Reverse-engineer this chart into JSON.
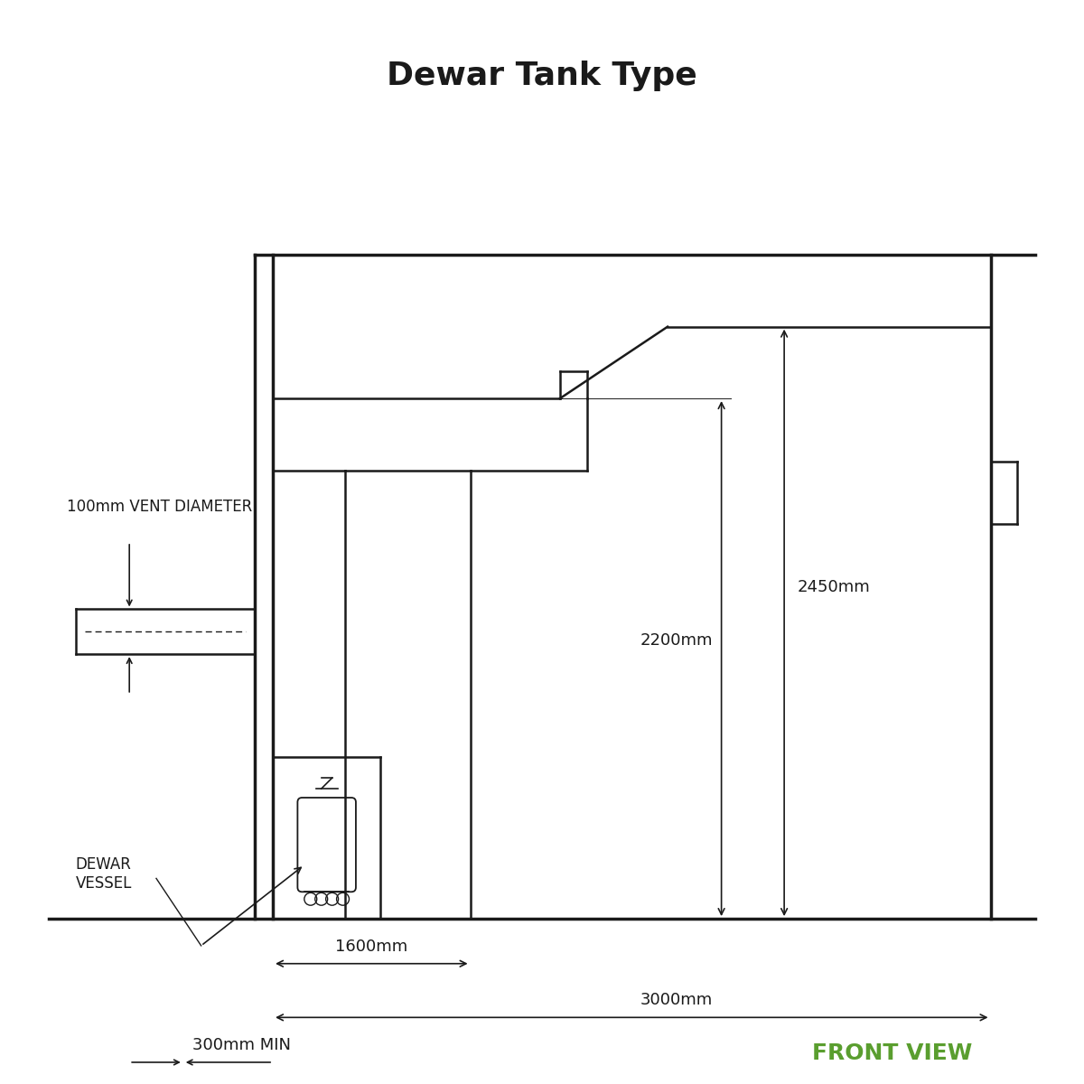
{
  "title": "Dewar Tank Type",
  "title_fontsize": 26,
  "front_view_label": "FRONT VIEW",
  "front_view_color": "#5a9e2f",
  "bg_color": "#ffffff",
  "line_color": "#1a1a1a",
  "dim_fontsize": 13,
  "label_fontsize": 12,
  "annotations": {
    "vent_label": "100mm VENT DIAMETER",
    "dewar_label": "DEWAR\nVESSEL",
    "dim_2450": "2450mm",
    "dim_2200": "2200mm",
    "dim_1600": "1600mm",
    "dim_3000": "3000mm",
    "dim_300": "300mm MIN"
  }
}
